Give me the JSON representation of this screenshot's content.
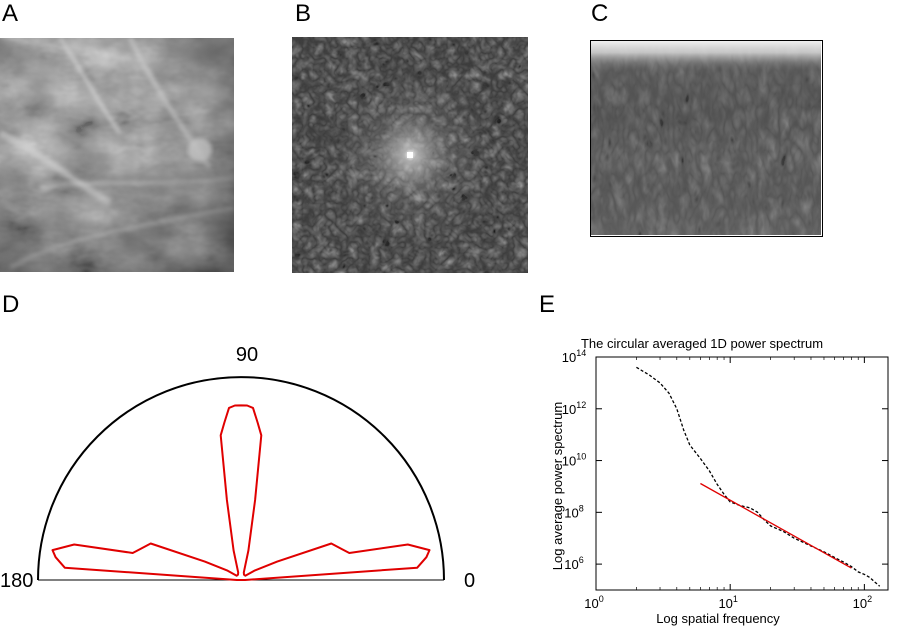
{
  "panels": {
    "a": {
      "letter": "A"
    },
    "b": {
      "letter": "B"
    },
    "c": {
      "letter": "C"
    },
    "d": {
      "letter": "D"
    },
    "e": {
      "letter": "E"
    }
  },
  "polar": {
    "label_90": "90",
    "label_180": "180",
    "label_0": "0",
    "curve_color": "#e00000",
    "rose_radius_frac": [
      [
        0,
        0.02
      ],
      [
        4,
        0.87
      ],
      [
        7,
        0.92
      ],
      [
        9,
        0.94
      ],
      [
        12,
        0.84
      ],
      [
        14,
        0.55
      ],
      [
        17,
        0.52
      ],
      [
        22,
        0.48
      ],
      [
        27,
        0.2
      ],
      [
        35,
        0.08
      ],
      [
        45,
        0.03
      ],
      [
        60,
        0.03
      ],
      [
        70,
        0.04
      ],
      [
        76,
        0.15
      ],
      [
        80,
        0.4
      ],
      [
        82,
        0.72
      ],
      [
        84,
        0.78
      ],
      [
        86,
        0.85
      ],
      [
        88,
        0.86
      ],
      [
        90,
        0.86
      ],
      [
        92,
        0.86
      ],
      [
        94,
        0.85
      ],
      [
        96,
        0.78
      ],
      [
        98,
        0.72
      ],
      [
        100,
        0.4
      ],
      [
        104,
        0.15
      ],
      [
        110,
        0.04
      ],
      [
        120,
        0.03
      ],
      [
        135,
        0.03
      ],
      [
        145,
        0.08
      ],
      [
        153,
        0.2
      ],
      [
        158,
        0.48
      ],
      [
        163,
        0.52
      ],
      [
        166,
        0.55
      ],
      [
        168,
        0.84
      ],
      [
        171,
        0.94
      ],
      [
        173,
        0.92
      ],
      [
        176,
        0.87
      ],
      [
        180,
        0.02
      ]
    ]
  },
  "chart_data": {
    "type": "line",
    "title": "The circular averaged 1D power spectrum",
    "xlabel": "Log spatial frequency",
    "ylabel": "Log average power spectrum",
    "xscale": "log",
    "yscale": "log",
    "xlim": [
      1,
      150
    ],
    "ylim": [
      100000,
      100000000000000
    ],
    "xticks": [
      {
        "v": 1,
        "base": "10",
        "exp": "0"
      },
      {
        "v": 10,
        "base": "10",
        "exp": "1"
      },
      {
        "v": 100,
        "base": "10",
        "exp": "2"
      }
    ],
    "yticks": [
      {
        "v": 1000000,
        "base": "10",
        "exp": "6"
      },
      {
        "v": 100000000,
        "base": "10",
        "exp": "8"
      },
      {
        "v": 10000000000,
        "base": "10",
        "exp": "10"
      },
      {
        "v": 1000000000000,
        "base": "10",
        "exp": "12"
      },
      {
        "v": 100000000000000,
        "base": "10",
        "exp": "14"
      }
    ],
    "series": [
      {
        "style": "dashed",
        "color": "#000000",
        "x": [
          2,
          2.5,
          3,
          3.5,
          4,
          4.5,
          5,
          6,
          7,
          8,
          9,
          10,
          12,
          14,
          16,
          18,
          20,
          25,
          30,
          40,
          50,
          60,
          70,
          80,
          90,
          100,
          110,
          120,
          130
        ],
        "y": [
          40000000000000,
          20000000000000,
          10000000000000,
          4000000000000,
          1000000000000,
          150000000000,
          40000000000,
          12000000000,
          4000000000,
          1200000000,
          500000000,
          250000000,
          180000000,
          150000000,
          100000000,
          50000000,
          30000000,
          18000000,
          10000000,
          5000000,
          3000000,
          1800000,
          1200000,
          800000,
          500000,
          400000,
          300000,
          200000,
          140000
        ]
      },
      {
        "style": "solid",
        "color": "#e00000",
        "x": [
          6,
          80
        ],
        "y": [
          1300000000,
          700000
        ]
      }
    ]
  }
}
